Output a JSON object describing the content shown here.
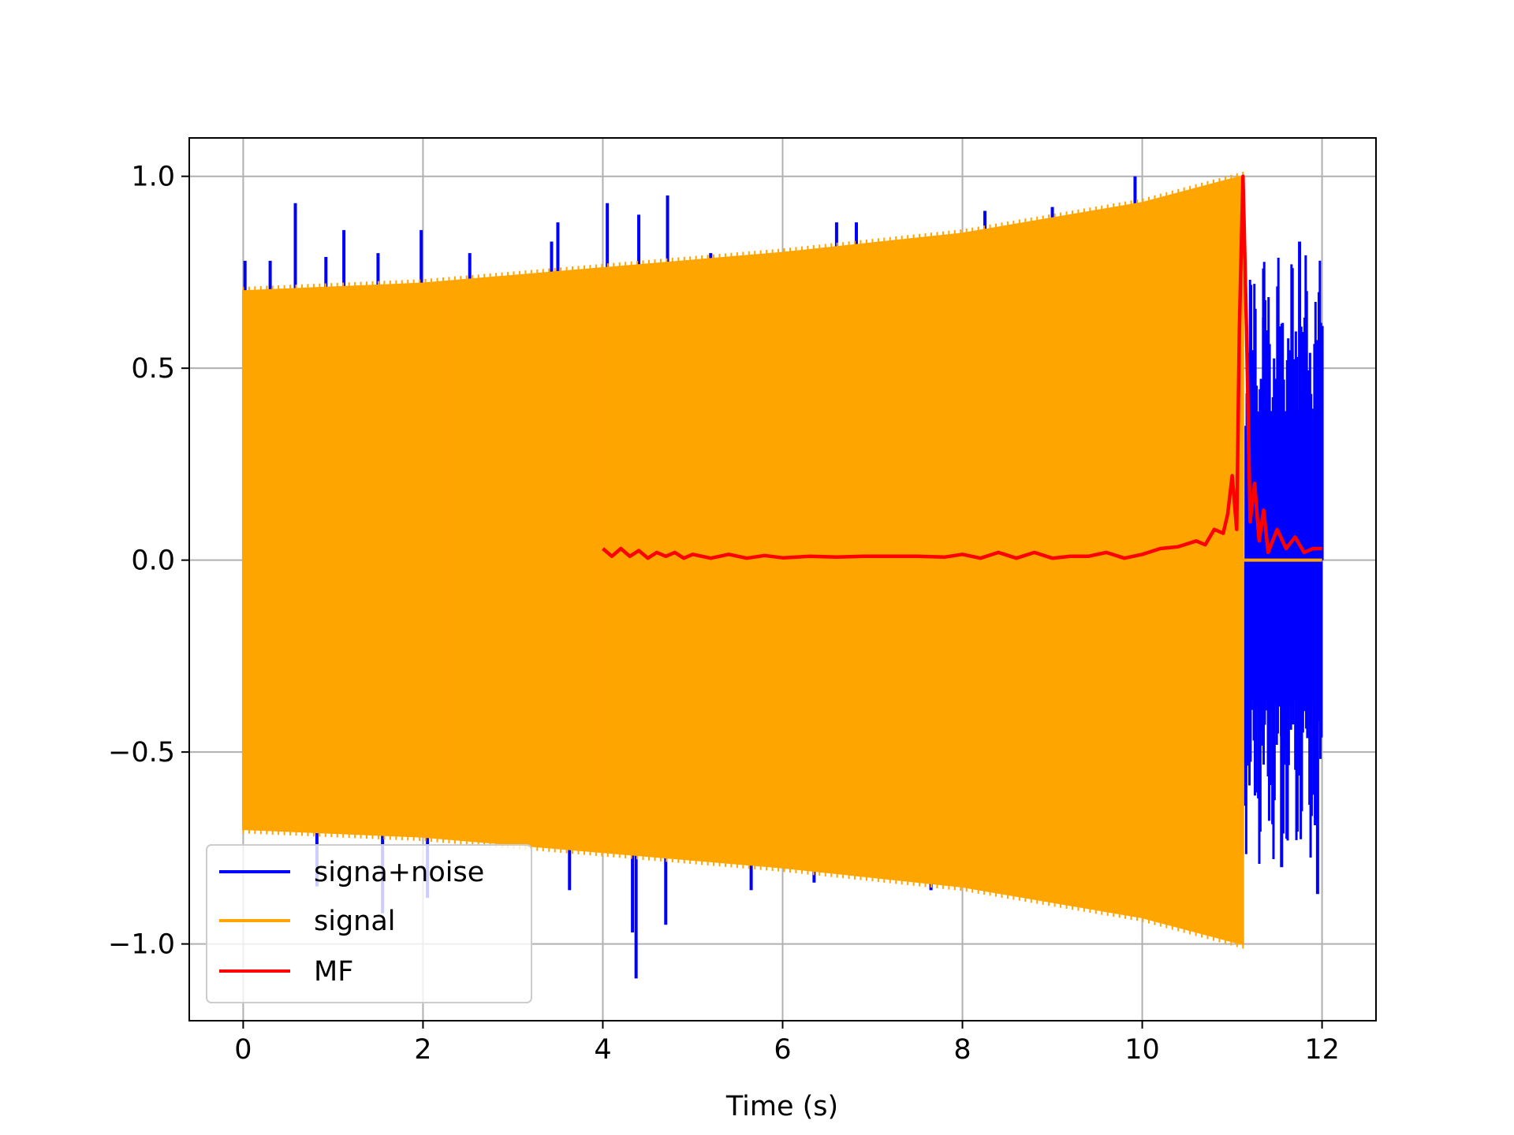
{
  "chart_data": {
    "type": "line",
    "title": "",
    "xlabel": "Time (s)",
    "ylabel": "",
    "xlim": [
      -0.6,
      12.6
    ],
    "ylim": [
      -1.2,
      1.1
    ],
    "grid": true,
    "legend_position": "lower-left",
    "xticks": [
      0,
      2,
      4,
      6,
      8,
      10,
      12
    ],
    "xtick_labels": [
      "0",
      "2",
      "4",
      "6",
      "8",
      "10",
      "12"
    ],
    "yticks": [
      -1.0,
      -0.5,
      0.0,
      0.5,
      1.0
    ],
    "ytick_labels": [
      "−1.0",
      "−0.5",
      "0.0",
      "0.5",
      "1.0"
    ],
    "series": [
      {
        "name": "signa+noise",
        "color": "#0000ff",
        "description_points": {
          "spikes_up": [
            [
              0.02,
              0.78
            ],
            [
              0.3,
              0.78
            ],
            [
              0.58,
              0.93
            ],
            [
              0.92,
              0.79
            ],
            [
              1.12,
              0.86
            ],
            [
              1.5,
              0.8
            ],
            [
              1.98,
              0.86
            ],
            [
              2.52,
              0.8
            ],
            [
              3.43,
              0.83
            ],
            [
              3.5,
              0.88
            ],
            [
              4.05,
              0.93
            ],
            [
              4.4,
              0.9
            ],
            [
              4.72,
              0.95
            ],
            [
              5.2,
              0.8
            ],
            [
              6.6,
              0.88
            ],
            [
              6.82,
              0.88
            ],
            [
              8.25,
              0.91
            ],
            [
              9.0,
              0.92
            ],
            [
              9.92,
              1.0
            ]
          ],
          "spikes_down": [
            [
              0.02,
              -0.53
            ],
            [
              0.82,
              -0.85
            ],
            [
              1.55,
              -0.92
            ],
            [
              2.05,
              -0.88
            ],
            [
              3.63,
              -0.86
            ],
            [
              4.33,
              -0.97
            ],
            [
              4.37,
              -1.09
            ],
            [
              4.7,
              -0.95
            ],
            [
              5.65,
              -0.86
            ],
            [
              6.35,
              -0.84
            ],
            [
              7.65,
              -0.86
            ],
            [
              9.5,
              -0.85
            ]
          ],
          "tail_after_signal": [
            [
              11.15,
              -0.64
            ],
            [
              11.35,
              0.76
            ],
            [
              11.55,
              -0.8
            ],
            [
              11.75,
              0.83
            ],
            [
              11.95,
              -0.87
            ],
            [
              12.0,
              0.61
            ]
          ]
        }
      },
      {
        "name": "signal",
        "color": "#ffa500",
        "envelope": {
          "t": [
            0,
            2,
            4,
            6,
            8,
            10,
            11.12
          ],
          "amplitude": [
            0.7,
            0.72,
            0.76,
            0.8,
            0.85,
            0.93,
            1.0
          ]
        },
        "end_time": 11.12,
        "after_end_value": 0.0
      },
      {
        "name": "MF",
        "color": "#ff0000",
        "x": [
          4.0,
          4.1,
          4.2,
          4.3,
          4.4,
          4.5,
          4.6,
          4.7,
          4.8,
          4.9,
          5.0,
          5.2,
          5.4,
          5.6,
          5.8,
          6.0,
          6.3,
          6.6,
          6.9,
          7.2,
          7.5,
          7.8,
          8.0,
          8.2,
          8.4,
          8.6,
          8.8,
          9.0,
          9.2,
          9.4,
          9.6,
          9.8,
          10.0,
          10.2,
          10.4,
          10.6,
          10.7,
          10.8,
          10.9,
          10.95,
          11.0,
          11.05,
          11.08,
          11.12,
          11.16,
          11.2,
          11.25,
          11.3,
          11.35,
          11.4,
          11.5,
          11.6,
          11.7,
          11.8,
          11.9,
          12.0
        ],
        "y": [
          0.03,
          0.01,
          0.03,
          0.01,
          0.025,
          0.005,
          0.02,
          0.01,
          0.02,
          0.005,
          0.015,
          0.005,
          0.015,
          0.005,
          0.012,
          0.006,
          0.01,
          0.008,
          0.01,
          0.01,
          0.01,
          0.008,
          0.015,
          0.005,
          0.02,
          0.005,
          0.02,
          0.005,
          0.01,
          0.01,
          0.02,
          0.005,
          0.015,
          0.03,
          0.035,
          0.05,
          0.04,
          0.08,
          0.07,
          0.12,
          0.22,
          0.08,
          0.6,
          1.0,
          0.6,
          0.1,
          0.2,
          0.05,
          0.13,
          0.02,
          0.08,
          0.03,
          0.06,
          0.02,
          0.03,
          0.03
        ]
      }
    ]
  }
}
